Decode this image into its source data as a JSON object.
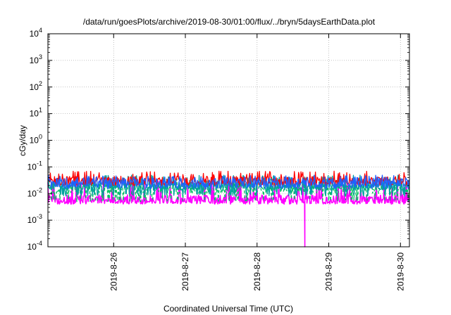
{
  "chart_data": {
    "type": "line",
    "title": "/data/run/goesPlots/archive/2019-08-30/01:00/flux/../bryn/5daysEarthData.plot",
    "xlabel": "Coordinated Universal Time (UTC)",
    "ylabel": "cGy/day",
    "yscale": "log",
    "ylim": [
      0.0001,
      10000
    ],
    "xlim": [
      "2019-08-25 02:00",
      "2019-08-30 03:00"
    ],
    "x_ticks": [
      "2019-8-26",
      "2019-8-27",
      "2019-8-28",
      "2019-8-29",
      "2019-8-30"
    ],
    "y_ticks": [
      {
        "base": "10",
        "exp": "-4"
      },
      {
        "base": "10",
        "exp": "-3"
      },
      {
        "base": "10",
        "exp": "-2"
      },
      {
        "base": "10",
        "exp": "-1"
      },
      {
        "base": "10",
        "exp": "0"
      },
      {
        "base": "10",
        "exp": "1"
      },
      {
        "base": "10",
        "exp": "2"
      },
      {
        "base": "10",
        "exp": "3"
      },
      {
        "base": "10",
        "exp": "4"
      }
    ],
    "grid": true,
    "series": [
      {
        "color": "#ff0000",
        "style": "solid",
        "typical": 0.03,
        "high": 0.07,
        "low": 0.02
      },
      {
        "color": "#00c060",
        "style": "dashed",
        "typical": 0.015,
        "high": 0.04,
        "low": 0.005
      },
      {
        "color": "#00a0a0",
        "style": "solid",
        "typical": 0.02,
        "high": 0.05,
        "low": 0.008
      },
      {
        "color": "#2060ff",
        "style": "solid",
        "typical": 0.025,
        "high": 0.05,
        "low": 0.015
      },
      {
        "color": "#ff00ff",
        "style": "solid",
        "typical": 0.006,
        "high": 0.03,
        "low": 0.004,
        "dropout": {
          "x": "2019-08-28 16:00",
          "y": 0.0001
        }
      }
    ]
  }
}
